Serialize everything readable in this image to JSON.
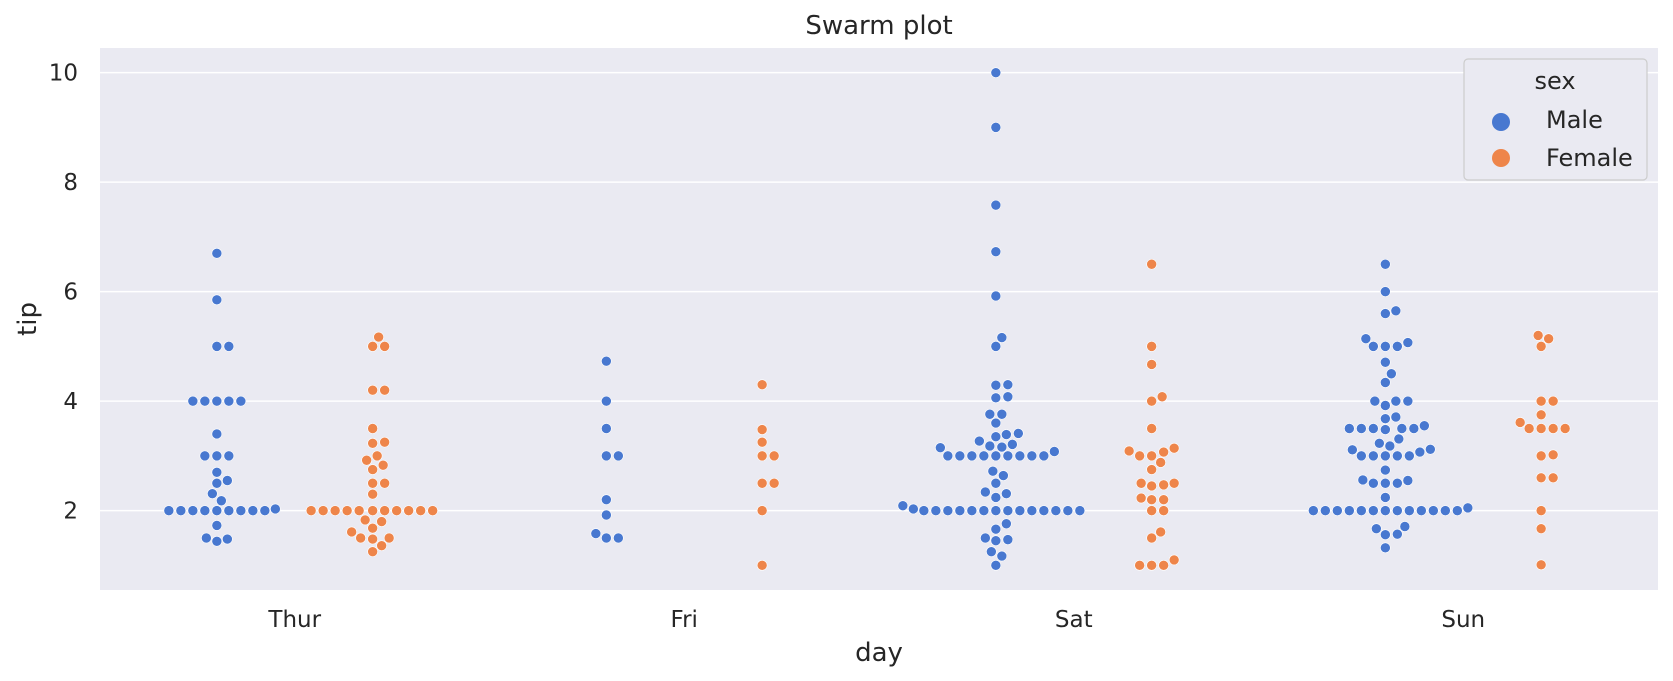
{
  "chart_data": {
    "type": "scatter",
    "subtype": "swarm",
    "title": "Swarm plot",
    "xlabel": "day",
    "ylabel": "tip",
    "categories": [
      "Thur",
      "Fri",
      "Sat",
      "Sun"
    ],
    "ylim": [
      0.55,
      10.45
    ],
    "yticks": [
      2,
      4,
      6,
      8,
      10
    ],
    "grid": true,
    "legend": {
      "title": "sex",
      "placement": "top-right"
    },
    "series": [
      {
        "name": "Male",
        "color": "#4878d0",
        "values": [
          [
            6.7,
            5.85,
            5.0,
            5.0,
            4.0,
            4.0,
            4.0,
            4.0,
            4.0,
            3.4,
            3.0,
            3.0,
            3.0,
            2.7,
            2.55,
            2.5,
            2.31,
            2.18,
            2.03,
            2.0,
            2.0,
            2.0,
            2.0,
            2.0,
            2.0,
            2.0,
            2.0,
            2.0,
            1.73,
            1.5,
            1.48,
            1.44
          ],
          [
            4.73,
            4.0,
            3.5,
            3.0,
            3.0,
            2.2,
            1.92,
            1.58,
            1.5,
            1.5
          ],
          [
            10.0,
            9.0,
            7.58,
            6.73,
            5.92,
            5.16,
            5.0,
            4.3,
            4.29,
            4.08,
            4.06,
            3.76,
            3.76,
            3.6,
            3.41,
            3.39,
            3.35,
            3.27,
            3.21,
            3.18,
            3.16,
            3.15,
            3.08,
            3.0,
            3.0,
            3.0,
            3.0,
            3.0,
            3.0,
            3.0,
            3.0,
            3.0,
            2.72,
            2.64,
            2.5,
            2.34,
            2.31,
            2.24,
            2.09,
            2.03,
            2.0,
            2.0,
            2.0,
            2.0,
            2.0,
            2.0,
            2.0,
            2.0,
            2.0,
            2.0,
            2.0,
            2.0,
            2.0,
            2.0,
            1.76,
            1.66,
            1.5,
            1.47,
            1.45,
            1.25,
            1.17,
            1.0
          ],
          [
            6.5,
            6.0,
            5.65,
            5.6,
            5.14,
            5.07,
            5.0,
            5.0,
            5.0,
            4.71,
            4.5,
            4.34,
            4.0,
            4.0,
            4.0,
            3.92,
            3.71,
            3.68,
            3.55,
            3.5,
            3.5,
            3.5,
            3.5,
            3.5,
            3.48,
            3.31,
            3.23,
            3.18,
            3.12,
            3.11,
            3.07,
            3.0,
            3.0,
            3.0,
            3.0,
            3.0,
            2.74,
            2.56,
            2.55,
            2.5,
            2.5,
            2.5,
            2.24,
            2.05,
            2.0,
            2.0,
            2.0,
            2.0,
            2.0,
            2.0,
            2.0,
            2.0,
            2.0,
            2.0,
            2.0,
            2.0,
            2.0,
            1.71,
            1.67,
            1.57,
            1.56,
            1.32
          ]
        ]
      },
      {
        "name": "Female",
        "color": "#ee854a",
        "values": [
          [
            5.17,
            5.0,
            5.0,
            4.2,
            4.2,
            3.5,
            3.25,
            3.23,
            3.0,
            2.92,
            2.83,
            2.75,
            2.5,
            2.5,
            2.3,
            2.0,
            2.0,
            2.0,
            2.0,
            2.0,
            2.0,
            2.0,
            2.0,
            2.0,
            2.0,
            2.0,
            1.83,
            1.8,
            1.68,
            1.61,
            1.5,
            1.5,
            1.48,
            1.36,
            1.25
          ],
          [
            4.3,
            3.48,
            3.25,
            3.0,
            3.0,
            2.5,
            2.5,
            2.0,
            1.0
          ],
          [
            6.5,
            5.0,
            4.67,
            4.08,
            4.0,
            3.5,
            3.14,
            3.09,
            3.07,
            3.0,
            3.0,
            2.88,
            2.75,
            2.5,
            2.5,
            2.47,
            2.45,
            2.23,
            2.2,
            2.2,
            2.0,
            2.0,
            1.61,
            1.5,
            1.1,
            1.0,
            1.0,
            1.0
          ],
          [
            5.2,
            5.14,
            5.0,
            4.0,
            4.0,
            3.75,
            3.61,
            3.5,
            3.5,
            3.5,
            3.5,
            3.02,
            3.0,
            2.6,
            2.6,
            2.0,
            1.67,
            1.01
          ]
        ]
      }
    ]
  }
}
